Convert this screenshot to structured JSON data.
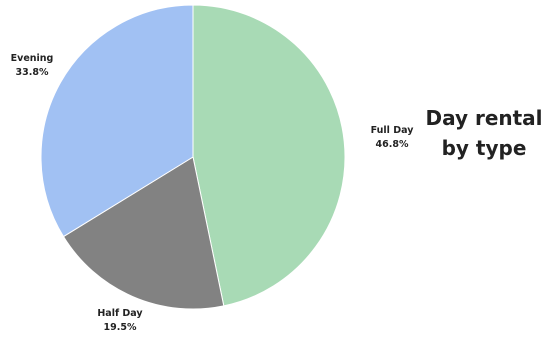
{
  "chart_data": {
    "type": "pie",
    "title": "Day rental by type",
    "categories": [
      "Full Day",
      "Half Day",
      "Evening"
    ],
    "values": [
      46.8,
      19.5,
      33.8
    ],
    "value_labels": [
      "46.8%",
      "19.5%",
      "33.8%"
    ],
    "colors": [
      "#a8dab5",
      "#828282",
      "#a1c1f3"
    ],
    "start_angle_deg": 0,
    "direction": "clockwise",
    "legend": "none",
    "labels_position": "outside"
  }
}
